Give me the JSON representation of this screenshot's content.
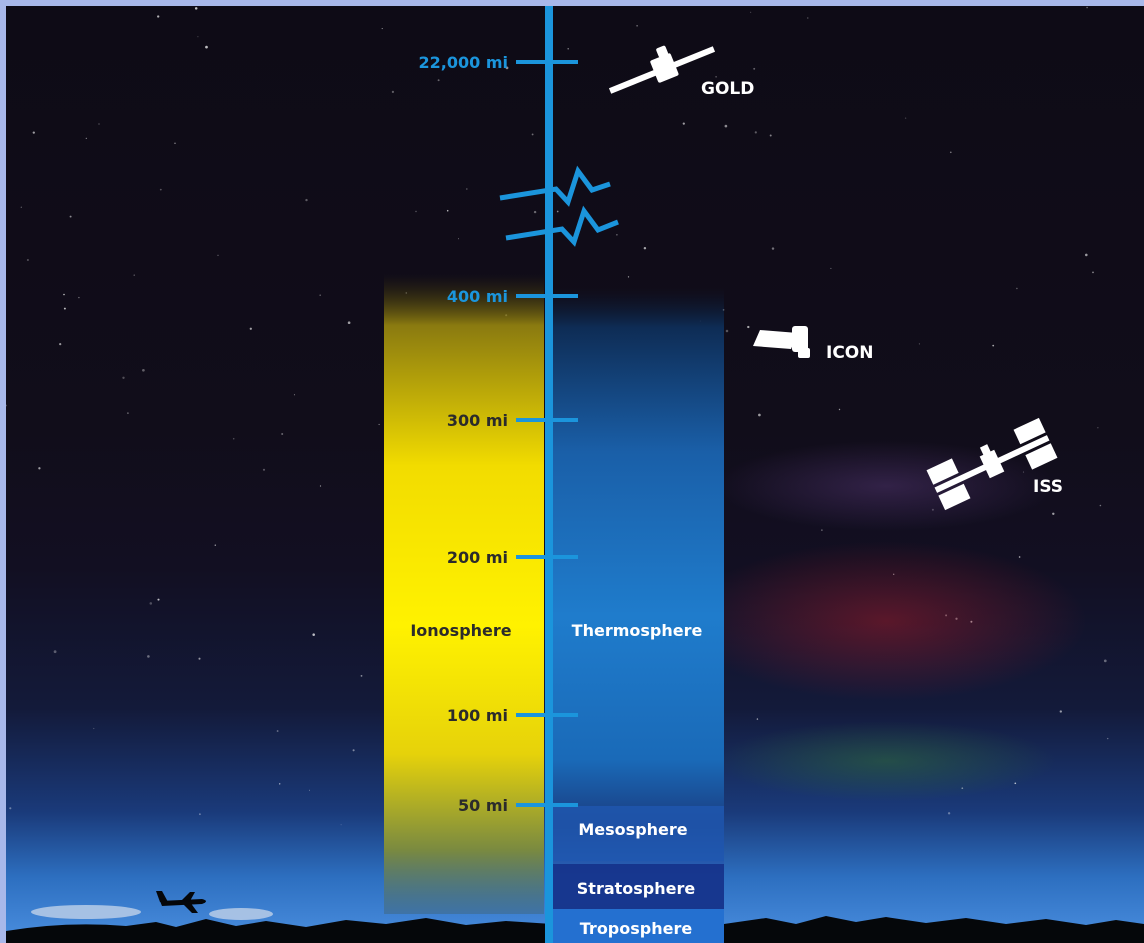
{
  "altitudes": {
    "mi_22000": "22,000 mi",
    "mi_400": "400 mi",
    "mi_300": "300 mi",
    "mi_200": "200 mi",
    "mi_100": "100 mi",
    "mi_50": "50 mi"
  },
  "layers": {
    "ionosphere": "Ionosphere",
    "thermosphere": "Thermosphere",
    "mesosphere": "Mesosphere",
    "stratosphere": "Stratosphere",
    "troposphere": "Troposphere"
  },
  "objects": {
    "gold": "GOLD",
    "icon": "ICON",
    "iss": "ISS"
  },
  "colors": {
    "axis": "#1b95dc",
    "ionosphere": "#ffee00",
    "thermosphere": "#1a74c4",
    "label_white": "#ffffff",
    "label_dark": "#2b2b2b"
  }
}
